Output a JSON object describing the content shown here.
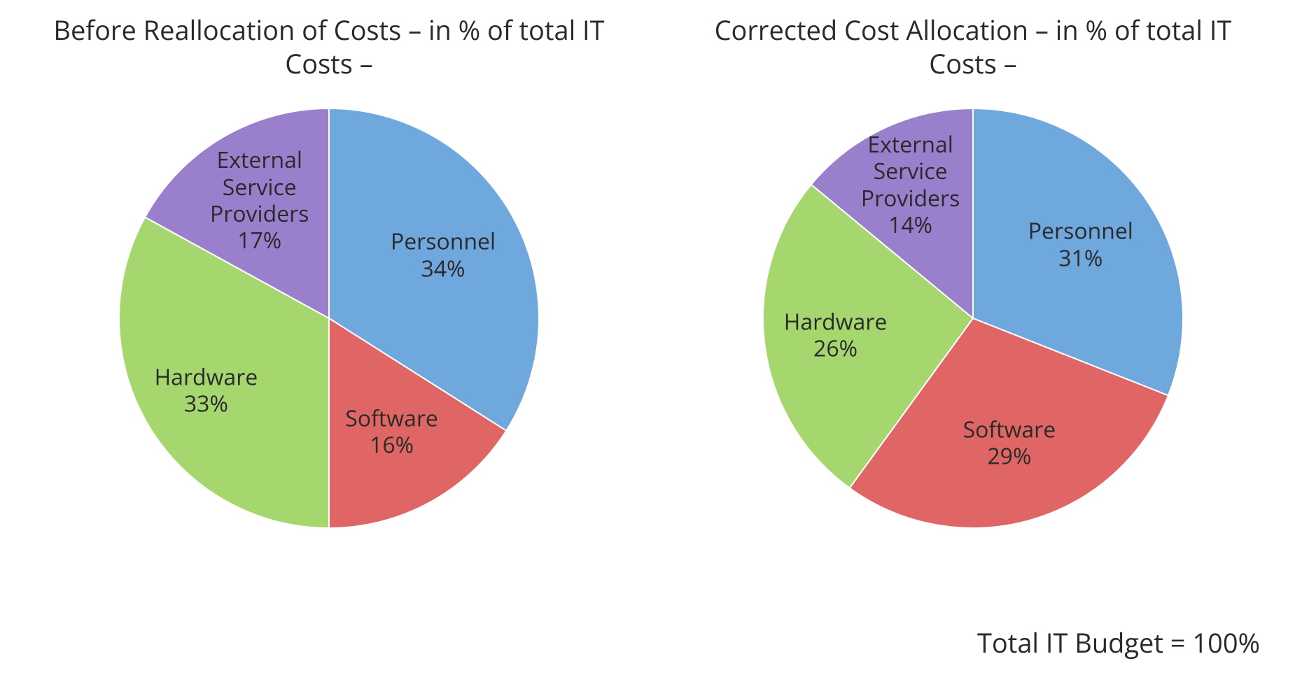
{
  "background_color": "#ffffff",
  "text_color": "#2a2a2a",
  "title_fontsize": 38,
  "label_fontsize": 32,
  "footnote_fontsize": 38,
  "footnote": "Total IT Budget = 100%",
  "charts": [
    {
      "id": "before",
      "title_line1": "Before Reallocation of Costs",
      "title_line2": "– in % of total IT Costs –",
      "type": "pie",
      "radius": 300,
      "start_angle_deg": 0,
      "stroke_color": "#ffffff",
      "stroke_width": 2,
      "slices": [
        {
          "label_lines": [
            "Personnel",
            "34%"
          ],
          "value": 34,
          "color": "#6fa8dc",
          "label_r": 0.62
        },
        {
          "label_lines": [
            "Software",
            "16%"
          ],
          "value": 16,
          "color": "#e06666",
          "label_r": 0.62
        },
        {
          "label_lines": [
            "Hardware",
            "33%"
          ],
          "value": 33,
          "color": "#a5d76e",
          "label_r": 0.68
        },
        {
          "label_lines": [
            "External",
            "Service",
            "Providers",
            "17%"
          ],
          "value": 17,
          "color": "#9a80cc",
          "label_r": 0.65
        }
      ]
    },
    {
      "id": "after",
      "title_line1": "Corrected Cost Allocation",
      "title_line2": "– in % of total IT Costs –",
      "type": "pie",
      "radius": 300,
      "start_angle_deg": 0,
      "stroke_color": "#ffffff",
      "stroke_width": 2,
      "slices": [
        {
          "label_lines": [
            "Personnel",
            "31%"
          ],
          "value": 31,
          "color": "#6fa8dc",
          "label_r": 0.62
        },
        {
          "label_lines": [
            "Software",
            "29%"
          ],
          "value": 29,
          "color": "#e06666",
          "label_r": 0.62
        },
        {
          "label_lines": [
            "Hardware",
            "26%"
          ],
          "value": 26,
          "color": "#a5d76e",
          "label_r": 0.66
        },
        {
          "label_lines": [
            "External",
            "Service",
            "Providers",
            "14%"
          ],
          "value": 14,
          "color": "#9a80cc",
          "label_r": 0.7
        }
      ]
    }
  ]
}
